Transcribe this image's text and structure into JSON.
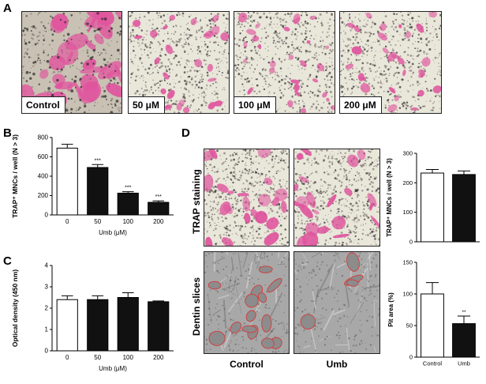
{
  "panels": {
    "a": {
      "letter": "A",
      "images": [
        {
          "label": "Control"
        },
        {
          "label": "50 μM"
        },
        {
          "label": "100 μM"
        },
        {
          "label": "200 μM"
        }
      ]
    },
    "b": {
      "letter": "B"
    },
    "c": {
      "letter": "C"
    },
    "d": {
      "letter": "D",
      "row_labels": [
        "TRAP staining",
        "Dentin slices"
      ],
      "col_labels": [
        "Control",
        "Umb"
      ]
    }
  },
  "colors": {
    "stain_pink": "#e0559e",
    "bar_control": "#ffffff",
    "bar_treated": "#111111",
    "pit_outline": "#d04040"
  },
  "chart_data": [
    {
      "id": "B",
      "type": "bar",
      "categories": [
        "0",
        "50",
        "100",
        "200"
      ],
      "values": [
        690,
        490,
        225,
        130
      ],
      "errors": [
        40,
        30,
        15,
        15
      ],
      "significance": [
        "",
        "***",
        "***",
        "***"
      ],
      "xlabel": "Umb (μM)",
      "ylabel": "TRAP⁺ MNCs / well (N > 3)",
      "ylim": [
        0,
        800
      ],
      "yticks": [
        0,
        200,
        400,
        600,
        800
      ]
    },
    {
      "id": "C",
      "type": "bar",
      "categories": [
        "0",
        "50",
        "100",
        "200"
      ],
      "values": [
        2.4,
        2.4,
        2.5,
        2.3
      ],
      "errors": [
        0.18,
        0.18,
        0.22,
        0.04
      ],
      "significance": [
        "",
        "",
        "",
        ""
      ],
      "xlabel": "Umb (μM)",
      "ylabel": "Optical density (450 nm)",
      "ylim": [
        0,
        4
      ],
      "yticks": [
        0,
        1,
        2,
        3,
        4
      ]
    },
    {
      "id": "D-top",
      "type": "bar",
      "categories": [
        "Control",
        "Umb"
      ],
      "values": [
        233,
        228
      ],
      "errors": [
        12,
        12
      ],
      "significance": [
        "",
        ""
      ],
      "xlabel": "",
      "ylabel": "TRAP⁺ MNCs / well (N > 3)",
      "ylim": [
        0,
        300
      ],
      "yticks": [
        0,
        100,
        200,
        300
      ],
      "show_xticklabels": false
    },
    {
      "id": "D-bottom",
      "type": "bar",
      "categories": [
        "Control",
        "Umb"
      ],
      "values": [
        100,
        53
      ],
      "errors": [
        18,
        12
      ],
      "significance": [
        "",
        "**"
      ],
      "xlabel": "",
      "ylabel": "Pit area (%)",
      "ylim": [
        0,
        150
      ],
      "yticks": [
        0,
        50,
        100,
        150
      ],
      "show_xticklabels": true
    }
  ]
}
